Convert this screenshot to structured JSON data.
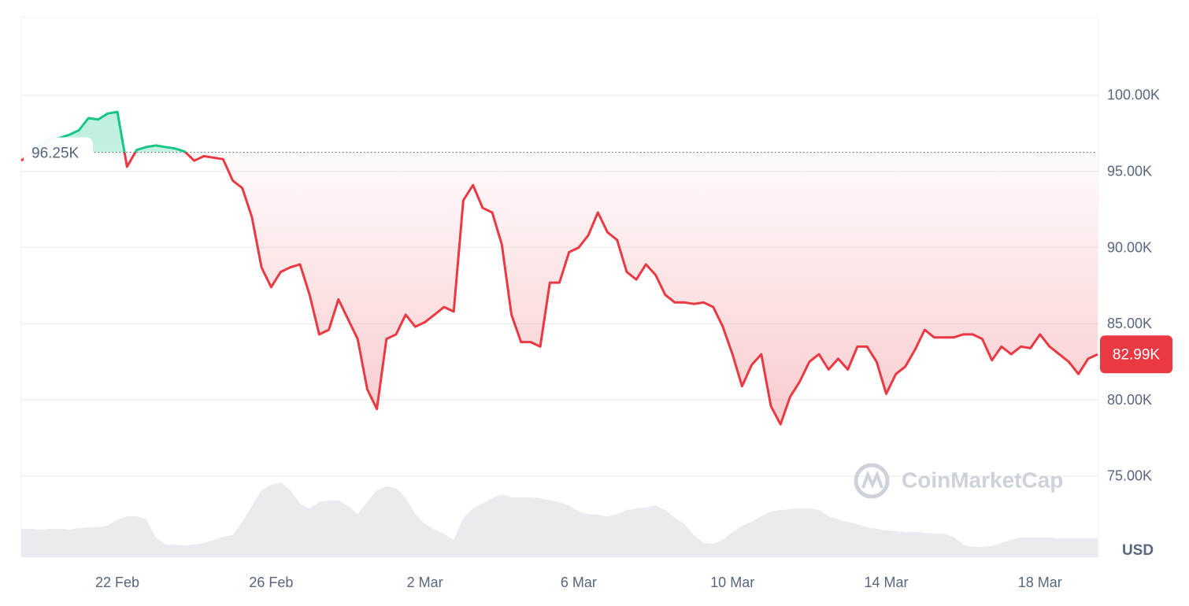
{
  "chart_data": {
    "type": "line",
    "categories": [
      null,
      null,
      null,
      null,
      null,
      null,
      null,
      null,
      null,
      null,
      "22 Feb",
      null,
      null,
      null,
      null,
      null,
      null,
      null,
      null,
      null,
      null,
      null,
      null,
      null,
      null,
      null,
      "26 Feb",
      null,
      null,
      null,
      null,
      null,
      null,
      null,
      null,
      null,
      null,
      null,
      null,
      null,
      null,
      null,
      "2 Mar",
      null,
      null,
      null,
      null,
      null,
      null,
      null,
      null,
      null,
      null,
      null,
      null,
      null,
      null,
      null,
      "6 Mar",
      null,
      null,
      null,
      null,
      null,
      null,
      null,
      null,
      null,
      null,
      null,
      null,
      null,
      null,
      null,
      "10 Mar",
      null,
      null,
      null,
      null,
      null,
      null,
      null,
      null,
      null,
      null,
      null,
      null,
      null,
      null,
      null,
      "14 Mar",
      null,
      null,
      null,
      null,
      null,
      null,
      null,
      null,
      null,
      null,
      null,
      null,
      null,
      null,
      null,
      "18 Mar",
      null,
      null,
      null,
      null,
      null,
      null
    ],
    "values": [
      95.7,
      96.2,
      96.7,
      97.1,
      97.2,
      97.4,
      97.7,
      98.5,
      98.4,
      98.8,
      98.9,
      95.3,
      96.4,
      96.6,
      96.7,
      96.6,
      96.5,
      96.3,
      95.7,
      96.0,
      95.9,
      95.8,
      94.4,
      93.9,
      92.0,
      88.7,
      87.4,
      88.4,
      88.7,
      88.9,
      86.9,
      84.3,
      84.6,
      86.6,
      85.3,
      84.0,
      80.7,
      79.4,
      84.0,
      84.3,
      85.6,
      84.8,
      85.1,
      85.6,
      86.1,
      85.8,
      93.1,
      94.1,
      92.6,
      92.3,
      90.2,
      85.6,
      83.8,
      83.8,
      83.5,
      87.7,
      87.7,
      89.7,
      90.0,
      90.8,
      92.3,
      91.0,
      90.5,
      88.4,
      87.9,
      88.9,
      88.2,
      86.9,
      86.4,
      86.4,
      86.3,
      86.4,
      86.1,
      84.8,
      83.0,
      80.9,
      82.3,
      83.0,
      79.6,
      78.4,
      80.2,
      81.2,
      82.5,
      83.0,
      82.0,
      82.7,
      82.0,
      83.5,
      83.5,
      82.5,
      80.4,
      81.7,
      82.2,
      83.3,
      84.6,
      84.1,
      84.1,
      84.1,
      84.3,
      84.3,
      84.0,
      82.6,
      83.5,
      83.0,
      83.5,
      83.4,
      84.3,
      83.5,
      83.0,
      82.5,
      81.7,
      82.7,
      82.99
    ],
    "colors": {
      "above": "#16c784",
      "below": "#ea3943"
    },
    "volume": [
      36,
      36,
      35,
      36,
      36,
      35,
      37,
      38,
      38,
      40,
      48,
      52,
      52,
      48,
      25,
      16,
      16,
      15,
      16,
      18,
      22,
      26,
      28,
      45,
      65,
      85,
      92,
      95,
      85,
      68,
      62,
      70,
      72,
      72,
      65,
      55,
      70,
      85,
      90,
      88,
      75,
      55,
      42,
      35,
      30,
      22,
      50,
      62,
      68,
      75,
      80,
      76,
      76,
      76,
      75,
      72,
      70,
      66,
      58,
      55,
      54,
      52,
      55,
      60,
      62,
      63,
      66,
      60,
      50,
      42,
      28,
      18,
      17,
      22,
      32,
      40,
      45,
      52,
      58,
      60,
      61,
      62,
      62,
      60,
      52,
      48,
      45,
      42,
      38,
      36,
      34,
      33,
      32,
      32,
      31,
      30,
      30,
      26,
      16,
      13,
      13,
      14,
      18,
      22,
      25,
      25,
      25,
      25,
      24,
      24,
      24,
      24,
      24
    ],
    "volume_color": "#e9ebef",
    "vlim": [
      0,
      100
    ],
    "ylim": [
      69.68,
      105.11
    ],
    "yticks": [
      {
        "value": 75,
        "label": "75.00K"
      },
      {
        "value": 80,
        "label": "80.00K"
      },
      {
        "value": 85,
        "label": "85.00K"
      },
      {
        "value": 90,
        "label": "90.00K"
      },
      {
        "value": 95,
        "label": "95.00K"
      },
      {
        "value": 100,
        "label": "100.00K"
      }
    ],
    "grid": true,
    "baseline": {
      "value": 96.25,
      "label": "96.25K"
    },
    "last_price": {
      "value": 82.99,
      "label": "82.99K"
    },
    "currency": "USD",
    "watermark": "CoinMarketCap"
  }
}
